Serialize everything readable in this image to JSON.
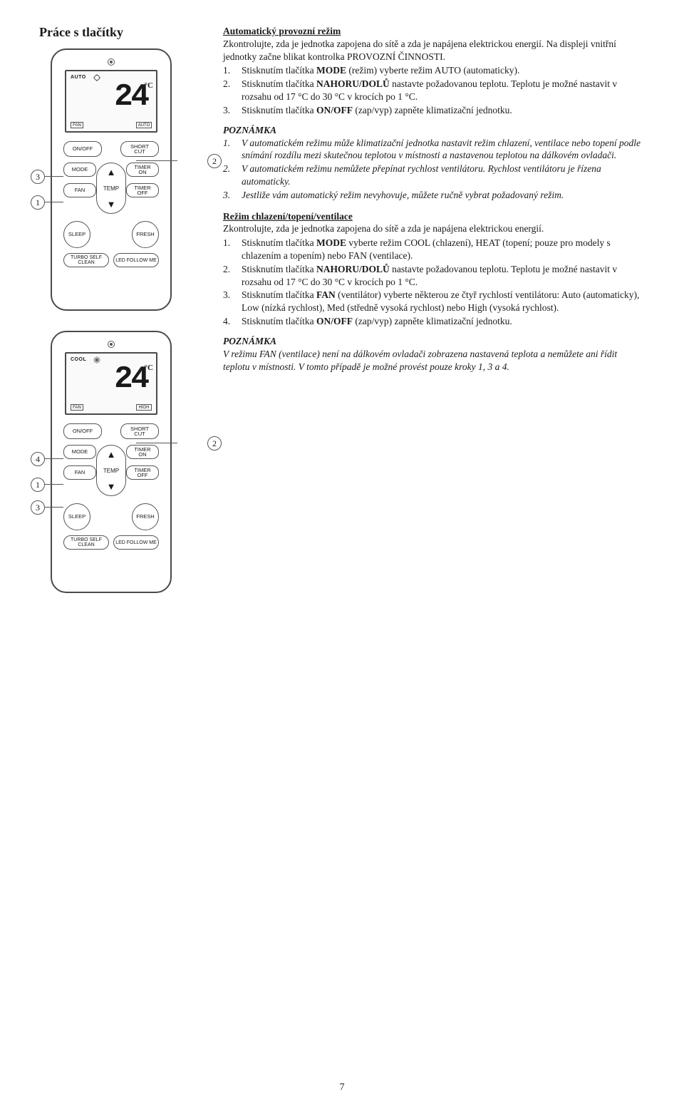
{
  "page": {
    "title": "Práce s tlačítky",
    "number": "7"
  },
  "remote": {
    "temp_display": "24",
    "deg": "°C",
    "mode1_label": "AUTO",
    "mode2_label": "COOL",
    "screen_bl": "FAN",
    "screen_br1": "AUTO",
    "screen_br2": "HIGH",
    "buttons": {
      "onoff": "ON/OFF",
      "shortcut": "SHORT\nCUT",
      "mode": "MODE",
      "timer_on": "TIMER\nON",
      "fan": "FAN",
      "timer_off": "TIMER\nOFF",
      "temp": "TEMP",
      "sleep": "SLEEP",
      "fresh": "FRESH",
      "turbo": "TURBO SELF CLEAN",
      "led": "LED FOLLOW ME"
    }
  },
  "callouts": {
    "c1": "1",
    "c2": "2",
    "c3": "3",
    "c4": "4"
  },
  "sec1": {
    "title": "Automatický provozní režim",
    "lead": "Zkontrolujte, zda je jednotka zapojena do sítě a zda je napájena elektrickou energií. Na displeji vnitřní jednotky začne blikat kontrolka PROVOZNÍ ČINNOSTI.",
    "steps": [
      "Stisknutím tlačítka <b>MODE</b> (režim) vyberte režim AUTO (automaticky).",
      "Stisknutím tlačítka <b>NAHORU/DOLŮ</b> nastavte požadovanou teplotu. Teplotu je možné nastavit v rozsahu od 17 °C do 30 °C v krocích po 1 °C.",
      "Stisknutím tlačítka <b>ON/OFF</b> (zap/vyp) zapněte klimatizační jednotku."
    ],
    "note_head": "POZNÁMKA",
    "notes": [
      "V automatickém režimu může klimatizační jednotka nastavit režim chlazení, ventilace nebo topení podle snímání rozdílu mezi skutečnou teplotou v místnosti a nastavenou teplotou na dálkovém ovladači.",
      "V automatickém režimu nemůžete přepínat rychlost ventilátoru. Rychlost ventilátoru je řízena automaticky.",
      "Jestliže vám automatický režim nevyhovuje, můžete ručně vybrat požadovaný režim."
    ]
  },
  "sec2": {
    "title": "Režim chlazení/topení/ventilace",
    "lead": "Zkontrolujte, zda je jednotka zapojena do sítě a zda je napájena elektrickou energií.",
    "steps": [
      "Stisknutím tlačítka <b>MODE</b> vyberte režim COOL (chlazení), HEAT (topení; pouze pro modely s chlazením a topením) nebo FAN (ventilace).",
      "Stisknutím tlačítka <b>NAHORU/DOLŮ</b> nastavte požadovanou teplotu. Teplotu je možné nastavit v rozsahu od 17 °C do 30 °C v krocích po 1 °C.",
      "Stisknutím tlačítka <b>FAN</b> (ventilátor) vyberte některou ze čtyř rychlostí ventilátoru: Auto (automaticky), Low (nízká rychlost), Med (středně vysoká rychlost) nebo High (vysoká rychlost).",
      "Stisknutím tlačítka <b>ON/OFF</b> (zap/vyp) zapněte klimatizační jednotku."
    ],
    "note_head": "POZNÁMKA",
    "note_body": "V režimu FAN (ventilace) není na dálkovém ovladači zobrazena nastavená teplota a nemůžete ani řídit teplotu v místnosti. V tomto případě je možné provést pouze kroky 1, 3 a 4."
  }
}
